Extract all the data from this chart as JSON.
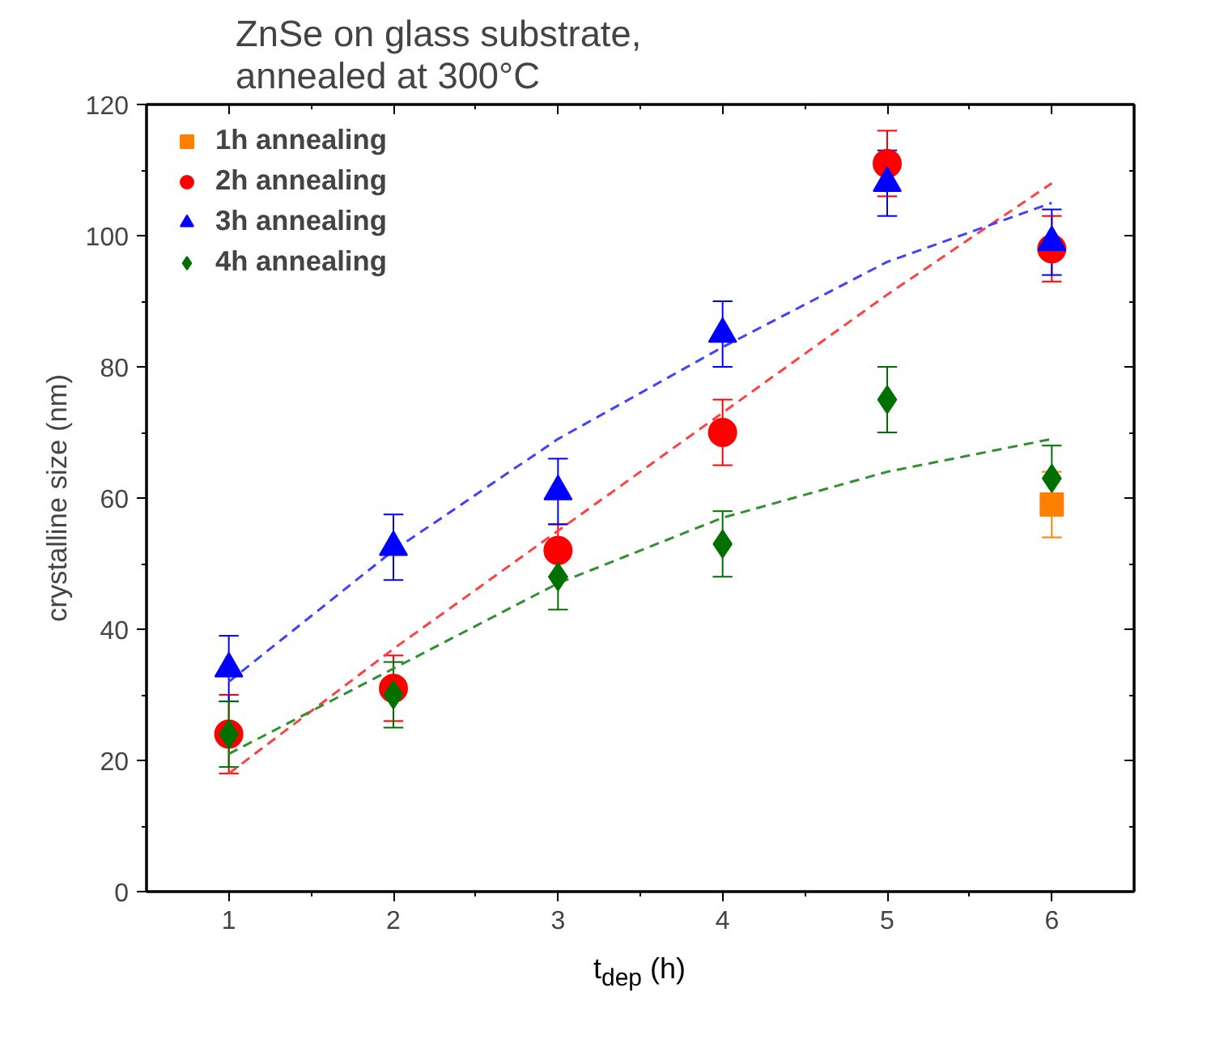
{
  "chart_data": {
    "type": "scatter",
    "title": "ZnSe on glass substrate,\nannealed at 300°C",
    "xlabel": "t$_{dep}$ (h)",
    "ylabel": "crystalline size (nm)",
    "x": [
      1,
      2,
      3,
      4,
      5,
      6
    ],
    "xlim": [
      0.5,
      6.5
    ],
    "xticks": [
      1,
      2,
      3,
      4,
      5,
      6
    ],
    "ylim": [
      0,
      120
    ],
    "yticks": [
      0,
      20,
      40,
      60,
      80,
      100,
      120
    ],
    "grid": false,
    "legend": "top left",
    "series": [
      {
        "name": "1h annealing",
        "color": "#ff8000",
        "marker": "square",
        "values": [
          null,
          null,
          null,
          null,
          null,
          59
        ],
        "errors": [
          null,
          null,
          null,
          null,
          null,
          5
        ]
      },
      {
        "name": "2h annealing",
        "color": "#ff0000",
        "marker": "circle",
        "values": [
          24,
          31,
          52,
          70,
          111,
          98
        ],
        "errors": [
          6,
          5,
          4,
          5,
          5,
          5
        ]
      },
      {
        "name": "3h annealing",
        "color": "#0000ff",
        "marker": "triangle",
        "values": [
          34,
          52.5,
          61,
          85,
          108,
          99
        ],
        "errors": [
          5,
          5,
          5,
          5,
          5,
          5
        ]
      },
      {
        "name": "4h annealing",
        "color": "#007000",
        "marker": "diamond",
        "values": [
          24,
          30,
          48,
          53,
          75,
          63
        ],
        "errors": [
          5,
          5,
          5,
          5,
          5,
          5
        ]
      },
      {
        "type": "line",
        "color": "#ff4040",
        "line_style": "dashed",
        "marker": "none",
        "values": [
          18,
          37,
          55,
          73,
          91,
          108
        ]
      },
      {
        "type": "line",
        "color": "#4040ff",
        "line_style": "dashed",
        "marker": "none",
        "values": [
          32,
          52,
          69,
          83,
          96,
          105
        ]
      },
      {
        "type": "line",
        "color": "#309030",
        "line_style": "dashed",
        "marker": "none",
        "values": [
          21,
          34,
          47,
          57,
          64,
          69
        ]
      }
    ]
  }
}
